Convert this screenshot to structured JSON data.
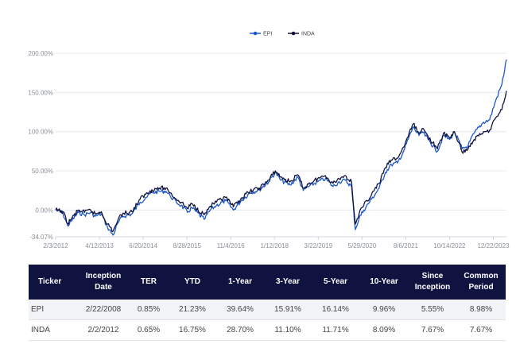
{
  "legend": [
    {
      "name": "EPI",
      "color": "#1c58c8"
    },
    {
      "name": "INDA",
      "color": "#12143f"
    }
  ],
  "chart_data": {
    "type": "line",
    "legend_position": "top-center",
    "grid": "horizontal",
    "xlabel": "",
    "ylabel": "",
    "x_ticks": [
      "2/3/2012",
      "4/12/2013",
      "6/20/2014",
      "8/28/2015",
      "11/4/2016",
      "1/12/2018",
      "3/22/2019",
      "5/29/2020",
      "8/6/2021",
      "10/14/2022",
      "12/22/2023"
    ],
    "y_ticks": [
      "200.00%",
      "150.00%",
      "100.00%",
      "50.00%",
      "0.00%",
      "-34.07%"
    ],
    "ylim": [
      -34.07,
      200
    ],
    "xlim": [
      "2012-02-03",
      "2024-04-30"
    ],
    "series": [
      {
        "name": "EPI",
        "color": "#1c58c8",
        "points": [
          [
            "2012-02-03",
            0
          ],
          [
            "2012-04-15",
            -4
          ],
          [
            "2012-06-01",
            -20
          ],
          [
            "2012-07-15",
            -13
          ],
          [
            "2012-09-15",
            -3
          ],
          [
            "2012-11-15",
            -6
          ],
          [
            "2013-01-15",
            -3
          ],
          [
            "2013-03-01",
            -8
          ],
          [
            "2013-05-01",
            -5
          ],
          [
            "2013-07-01",
            -22
          ],
          [
            "2013-08-25",
            -32
          ],
          [
            "2013-10-15",
            -16
          ],
          [
            "2013-12-01",
            -8
          ],
          [
            "2014-03-01",
            -5
          ],
          [
            "2014-05-20",
            10
          ],
          [
            "2014-07-15",
            16
          ],
          [
            "2014-09-15",
            22
          ],
          [
            "2014-11-30",
            24
          ],
          [
            "2015-02-01",
            24
          ],
          [
            "2015-03-15",
            18
          ],
          [
            "2015-05-15",
            10
          ],
          [
            "2015-07-01",
            6
          ],
          [
            "2015-09-01",
            -3
          ],
          [
            "2015-10-15",
            3
          ],
          [
            "2016-02-15",
            -12
          ],
          [
            "2016-04-15",
            0
          ],
          [
            "2016-06-15",
            6
          ],
          [
            "2016-09-15",
            12
          ],
          [
            "2016-12-01",
            0
          ],
          [
            "2017-02-15",
            12
          ],
          [
            "2017-05-15",
            22
          ],
          [
            "2017-08-15",
            26
          ],
          [
            "2017-11-15",
            36
          ],
          [
            "2018-01-20",
            48
          ],
          [
            "2018-03-15",
            38
          ],
          [
            "2018-06-15",
            32
          ],
          [
            "2018-09-01",
            42
          ],
          [
            "2018-10-25",
            25
          ],
          [
            "2018-12-15",
            30
          ],
          [
            "2019-03-15",
            36
          ],
          [
            "2019-06-01",
            40
          ],
          [
            "2019-08-15",
            30
          ],
          [
            "2019-10-15",
            36
          ],
          [
            "2019-12-15",
            38
          ],
          [
            "2020-02-15",
            30
          ],
          [
            "2020-03-23",
            -25
          ],
          [
            "2020-05-01",
            -10
          ],
          [
            "2020-06-15",
            0
          ],
          [
            "2020-09-01",
            14
          ],
          [
            "2020-11-15",
            28
          ],
          [
            "2021-01-15",
            48
          ],
          [
            "2021-03-15",
            58
          ],
          [
            "2021-05-15",
            60
          ],
          [
            "2021-07-15",
            75
          ],
          [
            "2021-10-18",
            106
          ],
          [
            "2021-12-15",
            95
          ],
          [
            "2022-01-15",
            100
          ],
          [
            "2022-03-15",
            90
          ],
          [
            "2022-06-15",
            75
          ],
          [
            "2022-08-15",
            95
          ],
          [
            "2022-10-15",
            90
          ],
          [
            "2022-12-01",
            100
          ],
          [
            "2023-02-15",
            78
          ],
          [
            "2023-04-15",
            82
          ],
          [
            "2023-06-15",
            98
          ],
          [
            "2023-09-15",
            112
          ],
          [
            "2023-11-15",
            115
          ],
          [
            "2024-01-15",
            140
          ],
          [
            "2024-03-15",
            160
          ],
          [
            "2024-04-30",
            192
          ]
        ]
      },
      {
        "name": "INDA",
        "color": "#12143f",
        "points": [
          [
            "2012-02-03",
            0
          ],
          [
            "2012-04-15",
            -2
          ],
          [
            "2012-06-01",
            -17
          ],
          [
            "2012-07-15",
            -10
          ],
          [
            "2012-09-15",
            0
          ],
          [
            "2012-11-15",
            -3
          ],
          [
            "2013-01-15",
            0
          ],
          [
            "2013-03-01",
            -5
          ],
          [
            "2013-05-01",
            -2
          ],
          [
            "2013-07-01",
            -18
          ],
          [
            "2013-08-25",
            -27
          ],
          [
            "2013-10-15",
            -12
          ],
          [
            "2013-12-01",
            -4
          ],
          [
            "2014-03-01",
            -2
          ],
          [
            "2014-05-20",
            14
          ],
          [
            "2014-07-15",
            20
          ],
          [
            "2014-09-15",
            26
          ],
          [
            "2014-11-30",
            28
          ],
          [
            "2015-02-01",
            28
          ],
          [
            "2015-03-15",
            22
          ],
          [
            "2015-05-15",
            14
          ],
          [
            "2015-07-01",
            10
          ],
          [
            "2015-09-01",
            2
          ],
          [
            "2015-10-15",
            8
          ],
          [
            "2016-02-15",
            -6
          ],
          [
            "2016-04-15",
            5
          ],
          [
            "2016-06-15",
            10
          ],
          [
            "2016-09-15",
            16
          ],
          [
            "2016-12-01",
            4
          ],
          [
            "2017-02-15",
            15
          ],
          [
            "2017-05-15",
            24
          ],
          [
            "2017-08-15",
            28
          ],
          [
            "2017-11-15",
            38
          ],
          [
            "2018-01-20",
            50
          ],
          [
            "2018-03-15",
            42
          ],
          [
            "2018-06-15",
            36
          ],
          [
            "2018-09-01",
            45
          ],
          [
            "2018-10-25",
            28
          ],
          [
            "2018-12-15",
            33
          ],
          [
            "2019-03-15",
            40
          ],
          [
            "2019-06-01",
            44
          ],
          [
            "2019-08-15",
            34
          ],
          [
            "2019-10-15",
            40
          ],
          [
            "2019-12-15",
            44
          ],
          [
            "2020-02-15",
            36
          ],
          [
            "2020-03-23",
            -18
          ],
          [
            "2020-05-01",
            -4
          ],
          [
            "2020-06-15",
            6
          ],
          [
            "2020-09-01",
            20
          ],
          [
            "2020-11-15",
            34
          ],
          [
            "2021-01-15",
            54
          ],
          [
            "2021-03-15",
            64
          ],
          [
            "2021-05-15",
            66
          ],
          [
            "2021-07-15",
            80
          ],
          [
            "2021-10-18",
            110
          ],
          [
            "2021-12-15",
            98
          ],
          [
            "2022-01-15",
            104
          ],
          [
            "2022-03-15",
            94
          ],
          [
            "2022-06-15",
            78
          ],
          [
            "2022-08-15",
            98
          ],
          [
            "2022-10-15",
            92
          ],
          [
            "2022-12-01",
            100
          ],
          [
            "2023-02-15",
            74
          ],
          [
            "2023-04-15",
            78
          ],
          [
            "2023-06-15",
            90
          ],
          [
            "2023-09-15",
            100
          ],
          [
            "2023-11-15",
            102
          ],
          [
            "2024-01-15",
            118
          ],
          [
            "2024-03-15",
            128
          ],
          [
            "2024-04-30",
            152
          ]
        ]
      }
    ]
  },
  "table": {
    "headers": [
      "Ticker",
      "Inception\nDate",
      "TER",
      "YTD",
      "1-Year",
      "3-Year",
      "5-Year",
      "10-Year",
      "Since\nInception",
      "Common\nPeriod"
    ],
    "rows": [
      [
        "EPI",
        "2/22/2008",
        "0.85%",
        "21.23%",
        "39.64%",
        "15.91%",
        "16.14%",
        "9.96%",
        "5.55%",
        "8.98%"
      ],
      [
        "INDA",
        "2/2/2012",
        "0.65%",
        "16.75%",
        "28.70%",
        "11.10%",
        "11.71%",
        "8.09%",
        "7.67%",
        "7.67%"
      ]
    ]
  }
}
